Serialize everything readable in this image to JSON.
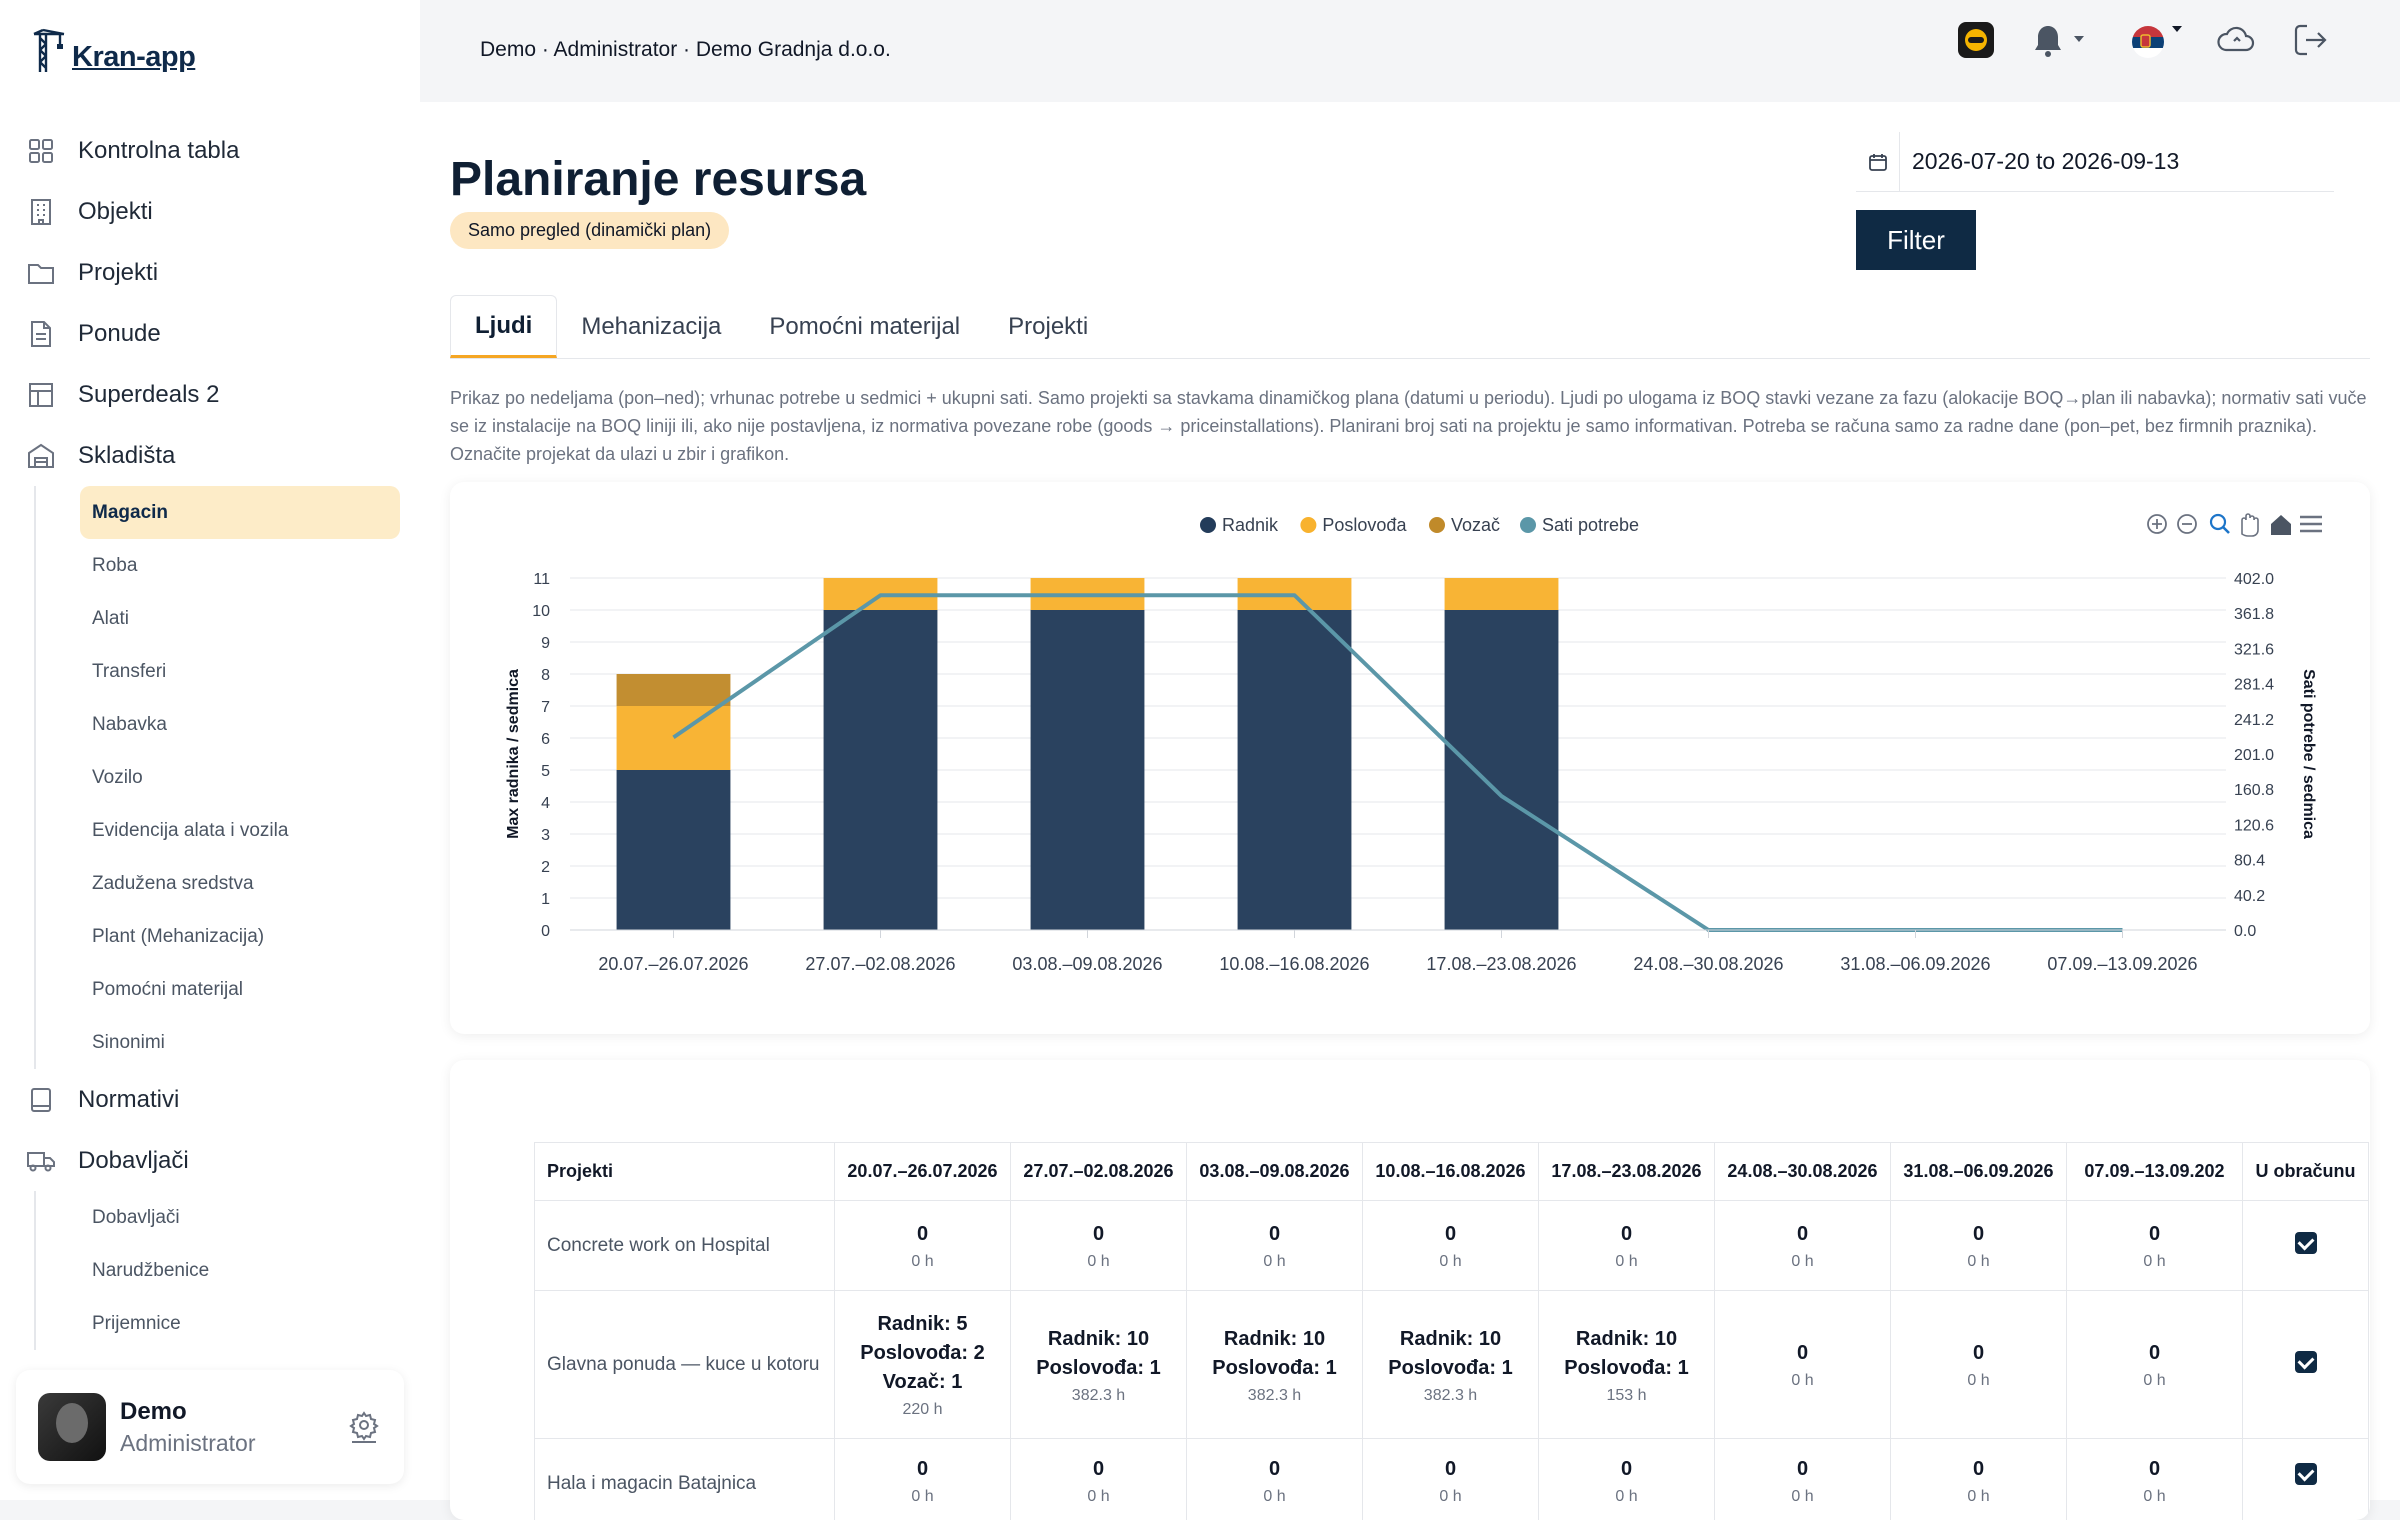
{
  "app": {
    "logo": "Kran-app"
  },
  "header": {
    "breadcrumb": "Demo · Administrator · Demo Gradnja d.o.o."
  },
  "sidebar": {
    "items": [
      {
        "label": "Kontrolna tabla",
        "icon": "grid-icon"
      },
      {
        "label": "Objekti",
        "icon": "building-icon"
      },
      {
        "label": "Projekti",
        "icon": "folder-icon"
      },
      {
        "label": "Ponude",
        "icon": "document-icon"
      },
      {
        "label": "Superdeals 2",
        "icon": "table-icon"
      },
      {
        "label": "Skladišta",
        "icon": "warehouse-icon"
      }
    ],
    "skladista_sub": [
      "Magacin",
      "Roba",
      "Alati",
      "Transferi",
      "Nabavka",
      "Vozilo",
      "Evidencija alata i vozila",
      "Zadužena sredstva",
      "Plant (Mehanizacija)",
      "Pomoćni materijal",
      "Sinonimi"
    ],
    "items2": [
      {
        "label": "Normativi",
        "icon": "book-icon"
      },
      {
        "label": "Dobavljači",
        "icon": "truck-icon"
      }
    ],
    "dobavljaci_sub": [
      "Dobavljači",
      "Narudžbenice",
      "Prijemnice"
    ]
  },
  "user": {
    "name": "Demo",
    "role": "Administrator"
  },
  "page": {
    "title": "Planiranje resursa",
    "badge": "Samo pregled (dinamički plan)",
    "date_range": "2026-07-20 to 2026-09-13",
    "filter_label": "Filter",
    "tabs": [
      "Ljudi",
      "Mehanizacija",
      "Pomoćni materijal",
      "Projekti"
    ],
    "description": "Prikaz po nedeljama (pon–ned); vrhunac potrebe u sedmici + ukupni sati. Samo projekti sa stavkama dinamičkog plana (datumi u periodu). Ljudi po ulogama iz BOQ stavki vezane za fazu (alokacije BOQ→plan ili nabavka); normativ sati vuče se iz instalacije na BOQ liniji ili, ako nije postavljena, iz normativa povezane robe (goods → priceinstallations). Planirani broj sati na projektu je samo informativan. Potreba se računa samo za radne dane (pon–pet, bez firmnih praznika). Označite projekat da ulazi u zbir i grafikon."
  },
  "chart_data": {
    "type": "bar",
    "categories": [
      "20.07.–26.07.2026",
      "27.07.–02.08.2026",
      "03.08.–09.08.2026",
      "10.08.–16.08.2026",
      "17.08.–23.08.2026",
      "24.08.–30.08.2026",
      "31.08.–06.09.2026",
      "07.09.–13.09.2026"
    ],
    "series": [
      {
        "name": "Radnik",
        "kind": "bar",
        "axis": "left",
        "color": "#233c5a",
        "values": [
          5,
          10,
          10,
          10,
          10,
          0,
          0,
          0
        ]
      },
      {
        "name": "Poslovođa",
        "kind": "bar",
        "axis": "left",
        "color": "#f8b22e",
        "values": [
          2,
          1,
          1,
          1,
          1,
          0,
          0,
          0
        ]
      },
      {
        "name": "Vozač",
        "kind": "bar",
        "axis": "left",
        "color": "#c08a2a",
        "values": [
          1,
          0,
          0,
          0,
          0,
          0,
          0,
          0
        ]
      },
      {
        "name": "Sati potrebe",
        "kind": "line",
        "axis": "right",
        "color": "#5b97a8",
        "values": [
          220,
          382.3,
          382.3,
          382.3,
          153,
          0,
          0,
          0
        ]
      }
    ],
    "ylabel": "Max radnika / sedmica",
    "y2label": "Sati potrebe / sedmica",
    "yticks": [
      "0",
      "1",
      "2",
      "3",
      "4",
      "5",
      "6",
      "7",
      "8",
      "9",
      "10",
      "11"
    ],
    "y2ticks": [
      "0.0",
      "40.2",
      "80.4",
      "120.6",
      "160.8",
      "201.0",
      "241.2",
      "281.4",
      "321.6",
      "361.8",
      "402.0"
    ],
    "ylim": [
      0,
      11
    ],
    "y2lim": [
      0,
      402
    ],
    "legend": "top-center",
    "grid": true
  },
  "table": {
    "headers": [
      "Projekti",
      "20.07.–26.07.2026",
      "27.07.–02.08.2026",
      "03.08.–09.08.2026",
      "10.08.–16.08.2026",
      "17.08.–23.08.2026",
      "24.08.–30.08.2026",
      "31.08.–06.09.2026",
      "07.09.–13.09.202",
      "U obračunu"
    ],
    "rows": [
      {
        "name": "Concrete work on Hospital",
        "cells": [
          {
            "main": "0",
            "sub": "0 h"
          },
          {
            "main": "0",
            "sub": "0 h"
          },
          {
            "main": "0",
            "sub": "0 h"
          },
          {
            "main": "0",
            "sub": "0 h"
          },
          {
            "main": "0",
            "sub": "0 h"
          },
          {
            "main": "0",
            "sub": "0 h"
          },
          {
            "main": "0",
            "sub": "0 h"
          },
          {
            "main": "0",
            "sub": "0 h"
          }
        ]
      },
      {
        "name": "Glavna ponuda — kuce u kotoru",
        "cells": [
          {
            "lines": [
              "Radnik: 5",
              "Poslovođa: 2",
              "Vozač: 1"
            ],
            "sub": "220 h"
          },
          {
            "lines": [
              "Radnik: 10",
              "Poslovođa: 1"
            ],
            "sub": "382.3 h"
          },
          {
            "lines": [
              "Radnik: 10",
              "Poslovođa: 1"
            ],
            "sub": "382.3 h"
          },
          {
            "lines": [
              "Radnik: 10",
              "Poslovođa: 1"
            ],
            "sub": "382.3 h"
          },
          {
            "lines": [
              "Radnik: 10",
              "Poslovođa: 1"
            ],
            "sub": "153 h"
          },
          {
            "main": "0",
            "sub": "0 h"
          },
          {
            "main": "0",
            "sub": "0 h"
          },
          {
            "main": "0",
            "sub": "0 h"
          }
        ]
      },
      {
        "name": "Hala i magacin Batajnica",
        "cells": [
          {
            "main": "0",
            "sub": "0 h"
          },
          {
            "main": "0",
            "sub": "0 h"
          },
          {
            "main": "0",
            "sub": "0 h"
          },
          {
            "main": "0",
            "sub": "0 h"
          },
          {
            "main": "0",
            "sub": "0 h"
          },
          {
            "main": "0",
            "sub": "0 h"
          },
          {
            "main": "0",
            "sub": "0 h"
          },
          {
            "main": "0",
            "sub": "0 h"
          }
        ]
      }
    ]
  }
}
